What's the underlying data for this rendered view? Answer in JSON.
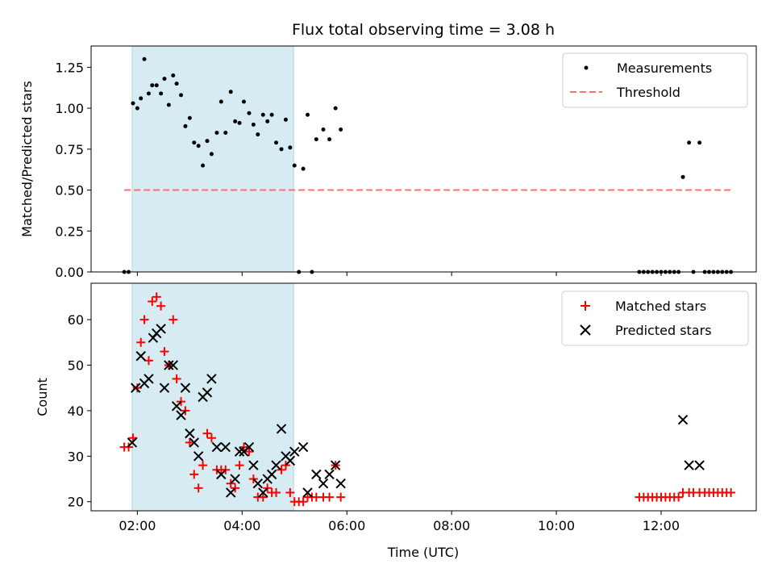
{
  "chart_data": {
    "title": "Flux total observing time = 3.08 h",
    "xlabel": "Time (UTC)",
    "x_unit": "hours UTC",
    "xlim": [
      "01:07",
      "13:49"
    ],
    "xticks": [
      {
        "value": "02:00",
        "label": "02:00"
      },
      {
        "value": "04:00",
        "label": "04:00"
      },
      {
        "value": "06:00",
        "label": "06:00"
      },
      {
        "value": "08:00",
        "label": "08:00"
      },
      {
        "value": "10:00",
        "label": "10:00"
      },
      {
        "value": "12:00",
        "label": "12:00"
      }
    ],
    "shaded_span": {
      "start": "01:54",
      "end": "04:59",
      "color": "#add8e6"
    },
    "panels": [
      {
        "type": "scatter",
        "ylabel": "Matched/Predicted stars",
        "ylim": [
          0,
          1.38
        ],
        "yticks": [
          "0.00",
          "0.25",
          "0.50",
          "0.75",
          "1.00",
          "1.25"
        ],
        "legend_position": "top-right",
        "series": [
          {
            "name": "Measurements",
            "marker": "dot",
            "color": "#000000",
            "points": [
              [
                "01:45",
                0
              ],
              [
                "01:50",
                0
              ],
              [
                "01:55",
                1.03
              ],
              [
                "02:00",
                1.0
              ],
              [
                "02:04",
                1.06
              ],
              [
                "02:08",
                1.3
              ],
              [
                "02:13",
                1.09
              ],
              [
                "02:17",
                1.14
              ],
              [
                "02:22",
                1.14
              ],
              [
                "02:27",
                1.09
              ],
              [
                "02:31",
                1.18
              ],
              [
                "02:36",
                1.02
              ],
              [
                "02:41",
                1.2
              ],
              [
                "02:45",
                1.15
              ],
              [
                "02:50",
                1.08
              ],
              [
                "02:55",
                0.89
              ],
              [
                "03:00",
                0.94
              ],
              [
                "03:05",
                0.79
              ],
              [
                "03:10",
                0.77
              ],
              [
                "03:15",
                0.65
              ],
              [
                "03:20",
                0.8
              ],
              [
                "03:25",
                0.72
              ],
              [
                "03:31",
                0.85
              ],
              [
                "03:36",
                1.04
              ],
              [
                "03:41",
                0.85
              ],
              [
                "03:47",
                1.1
              ],
              [
                "03:52",
                0.92
              ],
              [
                "03:57",
                0.91
              ],
              [
                "04:02",
                1.04
              ],
              [
                "04:08",
                0.97
              ],
              [
                "04:13",
                0.9
              ],
              [
                "04:18",
                0.84
              ],
              [
                "04:24",
                0.96
              ],
              [
                "04:29",
                0.92
              ],
              [
                "04:34",
                0.96
              ],
              [
                "04:39",
                0.79
              ],
              [
                "04:45",
                0.75
              ],
              [
                "04:50",
                0.93
              ],
              [
                "04:55",
                0.76
              ],
              [
                "05:00",
                0.65
              ],
              [
                "05:05",
                0
              ],
              [
                "05:10",
                0.63
              ],
              [
                "05:15",
                0.96
              ],
              [
                "05:20",
                0
              ],
              [
                "05:25",
                0.81
              ],
              [
                "05:33",
                0.87
              ],
              [
                "05:40",
                0.81
              ],
              [
                "05:47",
                1.0
              ],
              [
                "05:53",
                0.87
              ],
              [
                "11:35",
                0
              ],
              [
                "11:40",
                0
              ],
              [
                "11:45",
                0
              ],
              [
                "11:50",
                0
              ],
              [
                "11:55",
                0
              ],
              [
                "12:00",
                0
              ],
              [
                "12:05",
                0
              ],
              [
                "12:10",
                0
              ],
              [
                "12:15",
                0
              ],
              [
                "12:20",
                0
              ],
              [
                "12:25",
                0.58
              ],
              [
                "12:32",
                0.79
              ],
              [
                "12:37",
                0
              ],
              [
                "12:44",
                0.79
              ],
              [
                "12:50",
                0
              ],
              [
                "12:55",
                0
              ],
              [
                "13:00",
                0
              ],
              [
                "13:05",
                0
              ],
              [
                "13:10",
                0
              ],
              [
                "13:15",
                0
              ],
              [
                "13:20",
                0
              ]
            ]
          },
          {
            "name": "Threshold",
            "marker": "dashed-line",
            "color": "#ff7070",
            "points": [
              [
                "01:45",
                0.5
              ],
              [
                "13:20",
                0.5
              ]
            ]
          }
        ]
      },
      {
        "type": "scatter",
        "ylabel": "Count",
        "ylim": [
          18,
          68
        ],
        "yticks": [
          "20",
          "30",
          "40",
          "50",
          "60"
        ],
        "legend_position": "top-right",
        "series": [
          {
            "name": "Matched stars",
            "marker": "plus",
            "color": "#ff0000",
            "points": [
              [
                "01:45",
                32
              ],
              [
                "01:50",
                32
              ],
              [
                "01:55",
                34
              ],
              [
                "02:00",
                45
              ],
              [
                "02:04",
                55
              ],
              [
                "02:08",
                60
              ],
              [
                "02:13",
                51
              ],
              [
                "02:17",
                64
              ],
              [
                "02:22",
                65
              ],
              [
                "02:27",
                63
              ],
              [
                "02:31",
                53
              ],
              [
                "02:36",
                50
              ],
              [
                "02:41",
                60
              ],
              [
                "02:45",
                47
              ],
              [
                "02:50",
                42
              ],
              [
                "02:55",
                40
              ],
              [
                "03:00",
                33
              ],
              [
                "03:05",
                26
              ],
              [
                "03:10",
                23
              ],
              [
                "03:15",
                28
              ],
              [
                "03:20",
                35
              ],
              [
                "03:25",
                34
              ],
              [
                "03:31",
                27
              ],
              [
                "03:36",
                27
              ],
              [
                "03:41",
                27
              ],
              [
                "03:47",
                24
              ],
              [
                "03:52",
                23
              ],
              [
                "03:57",
                28
              ],
              [
                "04:02",
                32
              ],
              [
                "04:08",
                31
              ],
              [
                "04:13",
                25
              ],
              [
                "04:18",
                21
              ],
              [
                "04:24",
                21
              ],
              [
                "04:29",
                23
              ],
              [
                "04:34",
                22
              ],
              [
                "04:39",
                22
              ],
              [
                "04:45",
                27
              ],
              [
                "04:50",
                28
              ],
              [
                "04:55",
                22
              ],
              [
                "05:00",
                20
              ],
              [
                "05:05",
                20
              ],
              [
                "05:10",
                20
              ],
              [
                "05:15",
                21
              ],
              [
                "05:20",
                21
              ],
              [
                "05:25",
                21
              ],
              [
                "05:33",
                21
              ],
              [
                "05:40",
                21
              ],
              [
                "05:47",
                28
              ],
              [
                "05:53",
                21
              ],
              [
                "11:35",
                21
              ],
              [
                "11:40",
                21
              ],
              [
                "11:45",
                21
              ],
              [
                "11:50",
                21
              ],
              [
                "11:55",
                21
              ],
              [
                "12:00",
                21
              ],
              [
                "12:05",
                21
              ],
              [
                "12:10",
                21
              ],
              [
                "12:15",
                21
              ],
              [
                "12:20",
                21
              ],
              [
                "12:25",
                22
              ],
              [
                "12:32",
                22
              ],
              [
                "12:37",
                22
              ],
              [
                "12:44",
                22
              ],
              [
                "12:50",
                22
              ],
              [
                "12:55",
                22
              ],
              [
                "13:00",
                22
              ],
              [
                "13:05",
                22
              ],
              [
                "13:10",
                22
              ],
              [
                "13:15",
                22
              ],
              [
                "13:20",
                22
              ]
            ]
          },
          {
            "name": "Predicted stars",
            "marker": "x",
            "color": "#000000",
            "points": [
              [
                "01:54",
                33
              ],
              [
                "01:58",
                45
              ],
              [
                "02:04",
                52
              ],
              [
                "02:08",
                46
              ],
              [
                "02:13",
                47
              ],
              [
                "02:18",
                56
              ],
              [
                "02:22",
                57
              ],
              [
                "02:27",
                58
              ],
              [
                "02:31",
                45
              ],
              [
                "02:36",
                50
              ],
              [
                "02:41",
                50
              ],
              [
                "02:45",
                41
              ],
              [
                "02:50",
                39
              ],
              [
                "02:55",
                45
              ],
              [
                "03:00",
                35
              ],
              [
                "03:05",
                33
              ],
              [
                "03:10",
                30
              ],
              [
                "03:15",
                43
              ],
              [
                "03:20",
                44
              ],
              [
                "03:25",
                47
              ],
              [
                "03:31",
                32
              ],
              [
                "03:36",
                26
              ],
              [
                "03:41",
                32
              ],
              [
                "03:47",
                22
              ],
              [
                "03:52",
                25
              ],
              [
                "03:57",
                31
              ],
              [
                "04:02",
                31
              ],
              [
                "04:08",
                32
              ],
              [
                "04:13",
                28
              ],
              [
                "04:18",
                24
              ],
              [
                "04:24",
                22
              ],
              [
                "04:29",
                25
              ],
              [
                "04:34",
                26
              ],
              [
                "04:39",
                28
              ],
              [
                "04:45",
                36
              ],
              [
                "04:50",
                30
              ],
              [
                "04:55",
                29
              ],
              [
                "05:00",
                31
              ],
              [
                "05:10",
                32
              ],
              [
                "05:15",
                22
              ],
              [
                "05:25",
                26
              ],
              [
                "05:33",
                24
              ],
              [
                "05:40",
                26
              ],
              [
                "05:47",
                28
              ],
              [
                "05:53",
                24
              ],
              [
                "12:25",
                38
              ],
              [
                "12:32",
                28
              ],
              [
                "12:44",
                28
              ]
            ]
          }
        ]
      }
    ]
  }
}
